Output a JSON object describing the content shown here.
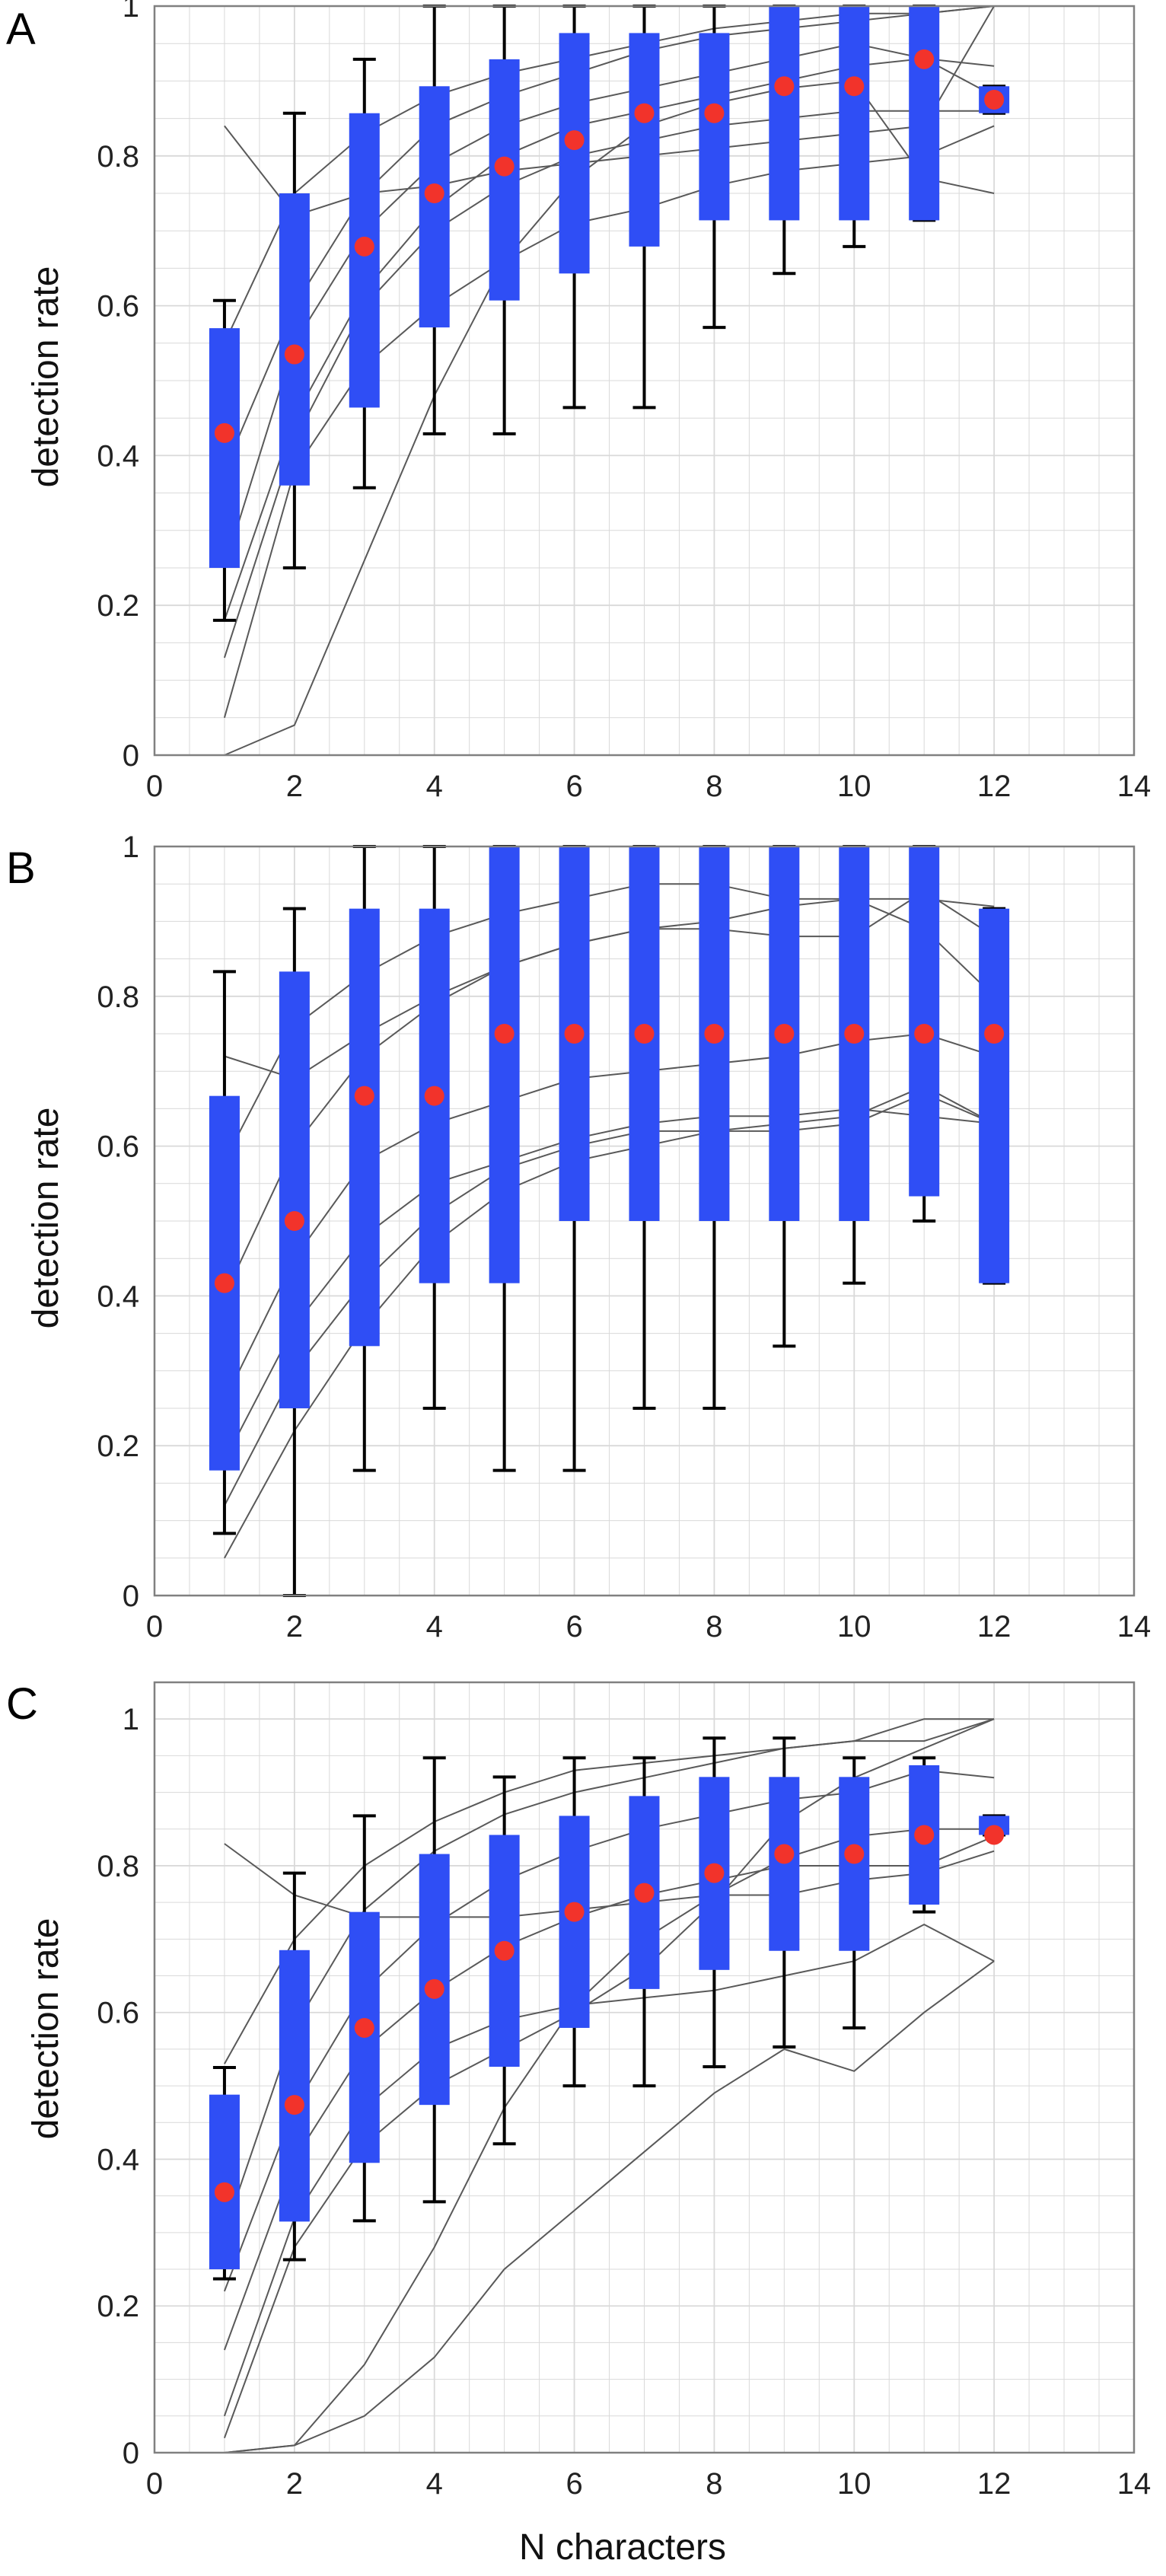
{
  "figure": {
    "xlabel": "N characters"
  },
  "chart_data": [
    {
      "type": "box",
      "panel_label": "A",
      "title": "",
      "xlabel": "",
      "ylabel": "detection rate",
      "xlim": [
        0,
        14
      ],
      "ylim": [
        0,
        1
      ],
      "xticks": [
        "0",
        "2",
        "4",
        "6",
        "8",
        "10",
        "12",
        "14"
      ],
      "yticks": [
        "0",
        "0.2",
        "0.4",
        "0.6",
        "0.8",
        "1"
      ],
      "grid": true,
      "boxes": [
        {
          "x": 1,
          "q1": 0.25,
          "q3": 0.57,
          "whisker_low": 0.18,
          "whisker_high": 0.607,
          "median": 0.43
        },
        {
          "x": 2,
          "q1": 0.36,
          "q3": 0.75,
          "whisker_low": 0.25,
          "whisker_high": 0.857,
          "median": 0.535
        },
        {
          "x": 3,
          "q1": 0.464,
          "q3": 0.857,
          "whisker_low": 0.357,
          "whisker_high": 0.929,
          "median": 0.679
        },
        {
          "x": 4,
          "q1": 0.571,
          "q3": 0.893,
          "whisker_low": 0.429,
          "whisker_high": 1.0,
          "median": 0.75
        },
        {
          "x": 5,
          "q1": 0.607,
          "q3": 0.929,
          "whisker_low": 0.429,
          "whisker_high": 1.0,
          "median": 0.786
        },
        {
          "x": 6,
          "q1": 0.643,
          "q3": 0.964,
          "whisker_low": 0.464,
          "whisker_high": 1.0,
          "median": 0.821
        },
        {
          "x": 7,
          "q1": 0.679,
          "q3": 0.964,
          "whisker_low": 0.464,
          "whisker_high": 1.0,
          "median": 0.857
        },
        {
          "x": 8,
          "q1": 0.714,
          "q3": 0.964,
          "whisker_low": 0.571,
          "whisker_high": 1.0,
          "median": 0.857
        },
        {
          "x": 9,
          "q1": 0.714,
          "q3": 1.0,
          "whisker_low": 0.643,
          "whisker_high": 1.0,
          "median": 0.893
        },
        {
          "x": 10,
          "q1": 0.714,
          "q3": 1.0,
          "whisker_low": 0.679,
          "whisker_high": 1.0,
          "median": 0.893
        },
        {
          "x": 11,
          "q1": 0.714,
          "q3": 1.0,
          "whisker_low": 0.714,
          "whisker_high": 1.0,
          "median": 0.929
        },
        {
          "x": 12,
          "q1": 0.857,
          "q3": 0.893,
          "whisker_low": 0.857,
          "whisker_high": 0.893,
          "median": 0.875
        }
      ],
      "subject_lines": [
        {
          "x": [
            1,
            2,
            3,
            4,
            5,
            6,
            7,
            8,
            9,
            10,
            11,
            12
          ],
          "y": [
            0.84,
            0.72,
            0.75,
            0.76,
            0.78,
            0.79,
            0.8,
            0.81,
            0.82,
            0.83,
            0.84,
            1.0
          ]
        },
        {
          "x": [
            1,
            2,
            3,
            4,
            5,
            6,
            7,
            8,
            9,
            10,
            11,
            12
          ],
          "y": [
            0.55,
            0.75,
            0.83,
            0.88,
            0.91,
            0.93,
            0.95,
            0.97,
            0.98,
            0.99,
            0.99,
            1.0
          ]
        },
        {
          "x": [
            1,
            2,
            3,
            4,
            5,
            6,
            7,
            8,
            9,
            10,
            11,
            12
          ],
          "y": [
            0.38,
            0.6,
            0.75,
            0.84,
            0.88,
            0.91,
            0.94,
            0.96,
            0.97,
            0.98,
            0.99,
            1.0
          ]
        },
        {
          "x": [
            1,
            2,
            3,
            4,
            5,
            6,
            7,
            8,
            9,
            10,
            11,
            12
          ],
          "y": [
            0.25,
            0.55,
            0.7,
            0.79,
            0.84,
            0.87,
            0.89,
            0.91,
            0.93,
            0.95,
            0.93,
            0.92
          ]
        },
        {
          "x": [
            1,
            2,
            3,
            4,
            5,
            6,
            7,
            8,
            9,
            10,
            11,
            12
          ],
          "y": [
            0.18,
            0.45,
            0.62,
            0.73,
            0.8,
            0.84,
            0.86,
            0.88,
            0.9,
            0.92,
            0.93,
            0.88
          ]
        },
        {
          "x": [
            1,
            2,
            3,
            4,
            5,
            6,
            7,
            8,
            9,
            10,
            11,
            12
          ],
          "y": [
            0.13,
            0.42,
            0.6,
            0.7,
            0.76,
            0.8,
            0.82,
            0.84,
            0.85,
            0.86,
            0.86,
            0.86
          ]
        },
        {
          "x": [
            1,
            2,
            3,
            4,
            5,
            6,
            7,
            8,
            9,
            10,
            11,
            12
          ],
          "y": [
            0.05,
            0.38,
            0.52,
            0.6,
            0.66,
            0.71,
            0.73,
            0.76,
            0.78,
            0.79,
            0.8,
            0.84
          ]
        },
        {
          "x": [
            1,
            2,
            3,
            4,
            5,
            6,
            7,
            8,
            9,
            10,
            11,
            12
          ],
          "y": [
            0.0,
            0.04,
            0.26,
            0.48,
            0.66,
            0.77,
            0.84,
            0.87,
            0.89,
            0.9,
            0.77,
            0.75
          ]
        }
      ]
    },
    {
      "type": "box",
      "panel_label": "B",
      "title": "",
      "xlabel": "",
      "ylabel": "detection rate",
      "xlim": [
        0,
        14
      ],
      "ylim": [
        0,
        1
      ],
      "xticks": [
        "0",
        "2",
        "4",
        "6",
        "8",
        "10",
        "12",
        "14"
      ],
      "yticks": [
        "0",
        "0.2",
        "0.4",
        "0.6",
        "0.8",
        "1"
      ],
      "grid": true,
      "boxes": [
        {
          "x": 1,
          "q1": 0.167,
          "q3": 0.667,
          "whisker_low": 0.083,
          "whisker_high": 0.833,
          "median": 0.417
        },
        {
          "x": 2,
          "q1": 0.25,
          "q3": 0.833,
          "whisker_low": 0.0,
          "whisker_high": 0.917,
          "median": 0.5
        },
        {
          "x": 3,
          "q1": 0.333,
          "q3": 0.917,
          "whisker_low": 0.167,
          "whisker_high": 1.0,
          "median": 0.667
        },
        {
          "x": 4,
          "q1": 0.417,
          "q3": 0.917,
          "whisker_low": 0.25,
          "whisker_high": 1.0,
          "median": 0.667
        },
        {
          "x": 5,
          "q1": 0.417,
          "q3": 1.0,
          "whisker_low": 0.167,
          "whisker_high": 1.0,
          "median": 0.75
        },
        {
          "x": 6,
          "q1": 0.5,
          "q3": 1.0,
          "whisker_low": 0.167,
          "whisker_high": 1.0,
          "median": 0.75
        },
        {
          "x": 7,
          "q1": 0.5,
          "q3": 1.0,
          "whisker_low": 0.25,
          "whisker_high": 1.0,
          "median": 0.75
        },
        {
          "x": 8,
          "q1": 0.5,
          "q3": 1.0,
          "whisker_low": 0.25,
          "whisker_high": 1.0,
          "median": 0.75
        },
        {
          "x": 9,
          "q1": 0.5,
          "q3": 1.0,
          "whisker_low": 0.333,
          "whisker_high": 1.0,
          "median": 0.75
        },
        {
          "x": 10,
          "q1": 0.5,
          "q3": 1.0,
          "whisker_low": 0.417,
          "whisker_high": 1.0,
          "median": 0.75
        },
        {
          "x": 11,
          "q1": 0.533,
          "q3": 1.0,
          "whisker_low": 0.5,
          "whisker_high": 1.0,
          "median": 0.75
        },
        {
          "x": 12,
          "q1": 0.417,
          "q3": 0.917,
          "whisker_low": 0.417,
          "whisker_high": 0.917,
          "median": 0.75
        }
      ],
      "subject_lines": [
        {
          "x": [
            1,
            2,
            3,
            4,
            5,
            6,
            7,
            8,
            9,
            10,
            11,
            12
          ],
          "y": [
            0.72,
            0.69,
            0.75,
            0.8,
            0.84,
            0.87,
            0.89,
            0.89,
            0.88,
            0.88,
            0.94,
            0.88
          ]
        },
        {
          "x": [
            1,
            2,
            3,
            4,
            5,
            6,
            7,
            8,
            9,
            10,
            11,
            12
          ],
          "y": [
            0.58,
            0.76,
            0.83,
            0.88,
            0.91,
            0.93,
            0.95,
            0.95,
            0.93,
            0.93,
            0.93,
            0.92
          ]
        },
        {
          "x": [
            1,
            2,
            3,
            4,
            5,
            6,
            7,
            8,
            9,
            10,
            11,
            12
          ],
          "y": [
            0.4,
            0.6,
            0.72,
            0.79,
            0.84,
            0.87,
            0.89,
            0.9,
            0.92,
            0.93,
            0.89,
            0.8
          ]
        },
        {
          "x": [
            1,
            2,
            3,
            4,
            5,
            6,
            7,
            8,
            9,
            10,
            11,
            12
          ],
          "y": [
            0.26,
            0.45,
            0.58,
            0.63,
            0.66,
            0.69,
            0.7,
            0.71,
            0.72,
            0.74,
            0.75,
            0.72
          ]
        },
        {
          "x": [
            1,
            2,
            3,
            4,
            5,
            6,
            7,
            8,
            9,
            10,
            11,
            12
          ],
          "y": [
            0.18,
            0.36,
            0.48,
            0.55,
            0.58,
            0.61,
            0.63,
            0.64,
            0.64,
            0.65,
            0.64,
            0.63
          ]
        },
        {
          "x": [
            1,
            2,
            3,
            4,
            5,
            6,
            7,
            8,
            9,
            10,
            11,
            12
          ],
          "y": [
            0.12,
            0.3,
            0.42,
            0.51,
            0.57,
            0.6,
            0.62,
            0.62,
            0.62,
            0.63,
            0.67,
            0.63
          ]
        },
        {
          "x": [
            1,
            2,
            3,
            4,
            5,
            6,
            7,
            8,
            9,
            10,
            11,
            12
          ],
          "y": [
            0.05,
            0.22,
            0.36,
            0.47,
            0.54,
            0.58,
            0.6,
            0.62,
            0.63,
            0.64,
            0.68,
            0.63
          ]
        }
      ]
    },
    {
      "type": "box",
      "panel_label": "C",
      "title": "",
      "xlabel": "N characters",
      "ylabel": "detection rate",
      "xlim": [
        0,
        14
      ],
      "ylim": [
        0,
        1.05
      ],
      "xticks": [
        "0",
        "2",
        "4",
        "6",
        "8",
        "10",
        "12",
        "14"
      ],
      "yticks": [
        "0",
        "0.2",
        "0.4",
        "0.6",
        "0.8",
        "1"
      ],
      "grid": true,
      "boxes": [
        {
          "x": 1,
          "q1": 0.25,
          "q3": 0.488,
          "whisker_low": 0.237,
          "whisker_high": 0.525,
          "median": 0.355
        },
        {
          "x": 2,
          "q1": 0.315,
          "q3": 0.685,
          "whisker_low": 0.263,
          "whisker_high": 0.79,
          "median": 0.474
        },
        {
          "x": 3,
          "q1": 0.395,
          "q3": 0.737,
          "whisker_low": 0.316,
          "whisker_high": 0.868,
          "median": 0.579
        },
        {
          "x": 4,
          "q1": 0.474,
          "q3": 0.816,
          "whisker_low": 0.342,
          "whisker_high": 0.947,
          "median": 0.632
        },
        {
          "x": 5,
          "q1": 0.526,
          "q3": 0.842,
          "whisker_low": 0.421,
          "whisker_high": 0.921,
          "median": 0.684
        },
        {
          "x": 6,
          "q1": 0.579,
          "q3": 0.868,
          "whisker_low": 0.5,
          "whisker_high": 0.947,
          "median": 0.737
        },
        {
          "x": 7,
          "q1": 0.632,
          "q3": 0.895,
          "whisker_low": 0.5,
          "whisker_high": 0.947,
          "median": 0.763
        },
        {
          "x": 8,
          "q1": 0.658,
          "q3": 0.921,
          "whisker_low": 0.526,
          "whisker_high": 0.974,
          "median": 0.79
        },
        {
          "x": 9,
          "q1": 0.684,
          "q3": 0.921,
          "whisker_low": 0.553,
          "whisker_high": 0.974,
          "median": 0.816
        },
        {
          "x": 10,
          "q1": 0.684,
          "q3": 0.921,
          "whisker_low": 0.579,
          "whisker_high": 0.947,
          "median": 0.816
        },
        {
          "x": 11,
          "q1": 0.747,
          "q3": 0.937,
          "whisker_low": 0.737,
          "whisker_high": 0.947,
          "median": 0.842
        },
        {
          "x": 12,
          "q1": 0.842,
          "q3": 0.868,
          "whisker_low": 0.842,
          "whisker_high": 0.868,
          "median": 0.842
        }
      ],
      "subject_lines": [
        {
          "x": [
            1,
            2,
            3,
            4,
            5,
            6,
            7,
            8,
            9,
            10,
            11,
            12
          ],
          "y": [
            0.83,
            0.76,
            0.73,
            0.73,
            0.73,
            0.74,
            0.75,
            0.76,
            0.76,
            0.78,
            0.79,
            0.82
          ]
        },
        {
          "x": [
            1,
            2,
            3,
            4,
            5,
            6,
            7,
            8,
            9,
            10,
            11,
            12
          ],
          "y": [
            0.53,
            0.7,
            0.8,
            0.86,
            0.9,
            0.93,
            0.94,
            0.95,
            0.96,
            0.97,
            0.97,
            1.0
          ]
        },
        {
          "x": [
            1,
            2,
            3,
            4,
            5,
            6,
            7,
            8,
            9,
            10,
            11,
            12
          ],
          "y": [
            0.3,
            0.58,
            0.74,
            0.82,
            0.87,
            0.9,
            0.92,
            0.94,
            0.96,
            0.97,
            1.0,
            1.0
          ]
        },
        {
          "x": [
            1,
            2,
            3,
            4,
            5,
            6,
            7,
            8,
            9,
            10,
            11,
            12
          ],
          "y": [
            0.22,
            0.47,
            0.63,
            0.72,
            0.78,
            0.82,
            0.85,
            0.87,
            0.89,
            0.9,
            0.93,
            0.92
          ]
        },
        {
          "x": [
            1,
            2,
            3,
            4,
            5,
            6,
            7,
            8,
            9,
            10,
            11,
            12
          ],
          "y": [
            0.14,
            0.4,
            0.55,
            0.63,
            0.69,
            0.73,
            0.76,
            0.78,
            0.8,
            0.8,
            0.8,
            0.84
          ]
        },
        {
          "x": [
            1,
            2,
            3,
            4,
            5,
            6,
            7,
            8,
            9,
            10,
            11,
            12
          ],
          "y": [
            0.05,
            0.32,
            0.47,
            0.55,
            0.59,
            0.61,
            0.62,
            0.63,
            0.65,
            0.67,
            0.72,
            0.67
          ]
        },
        {
          "x": [
            1,
            2,
            3,
            4,
            5,
            6,
            7,
            8,
            9,
            10,
            11,
            12
          ],
          "y": [
            0.02,
            0.28,
            0.42,
            0.5,
            0.55,
            0.6,
            0.66,
            0.75,
            0.86,
            0.92,
            0.96,
            1.0
          ]
        },
        {
          "x": [
            1,
            2,
            3,
            4,
            5,
            6,
            7,
            8,
            9,
            10,
            11,
            12
          ],
          "y": [
            0.0,
            0.01,
            0.05,
            0.13,
            0.25,
            0.33,
            0.41,
            0.49,
            0.55,
            0.52,
            0.6,
            0.67
          ]
        },
        {
          "x": [
            1,
            2,
            3,
            4,
            5,
            6,
            7,
            8,
            9,
            10,
            11,
            12
          ],
          "y": [
            0.0,
            0.01,
            0.12,
            0.28,
            0.47,
            0.61,
            0.7,
            0.76,
            0.81,
            0.84,
            0.85,
            0.85
          ]
        }
      ]
    }
  ],
  "colors": {
    "box_fill": "#2f4ef5",
    "median_dot": "#f2332b",
    "whisker": "#000000",
    "subject_line": "#595959",
    "grid": "#d9d9d9",
    "axes": "#808080"
  }
}
